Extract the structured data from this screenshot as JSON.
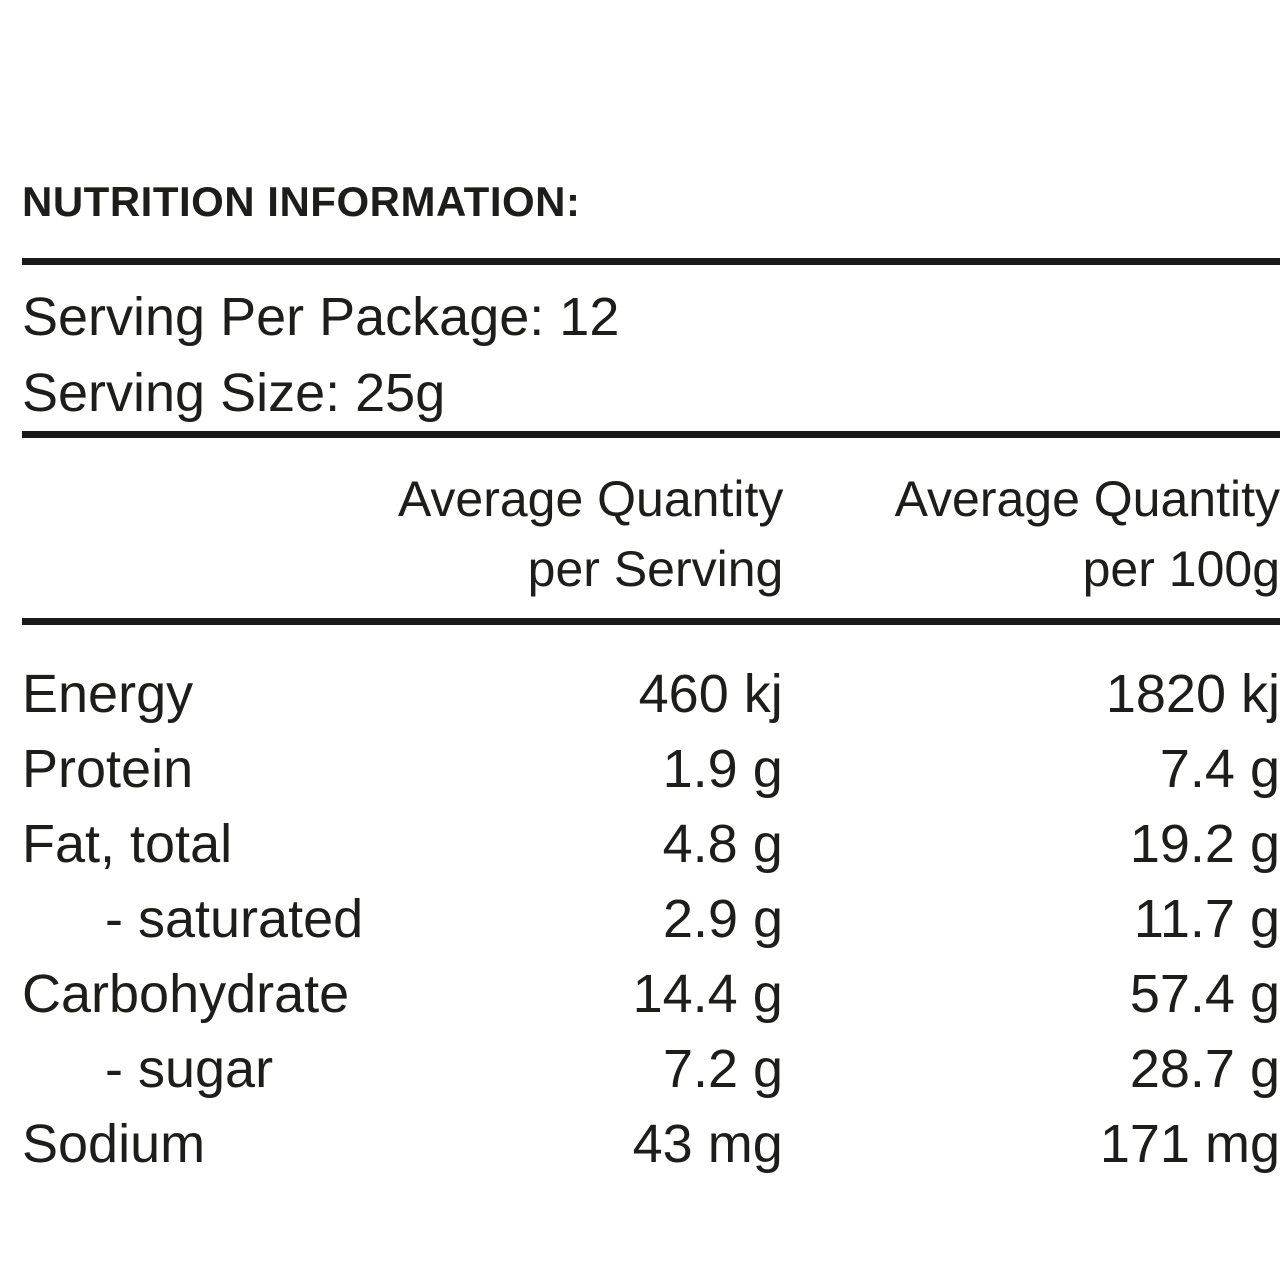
{
  "title": "NUTRITION INFORMATION:",
  "serving_info": {
    "per_package": "Serving Per Package: 12",
    "size": "Serving Size: 25g"
  },
  "table": {
    "columns": [
      {
        "line1": "Average Quantity",
        "line2": "per Serving"
      },
      {
        "line1": "Average Quantity",
        "line2": "per 100g"
      }
    ],
    "rows": [
      {
        "label": "Energy",
        "per_serving": "460 kj",
        "per_100g": "1820 kj"
      },
      {
        "label": "Protein",
        "per_serving": "1.9 g",
        "per_100g": "7.4 g"
      },
      {
        "label": "Fat, total",
        "per_serving": "4.8 g",
        "per_100g": "19.2 g"
      },
      {
        "label": "- saturated",
        "per_serving": "2.9 g",
        "per_100g": "11.7 g"
      },
      {
        "label": "Carbohydrate",
        "per_serving": "14.4 g",
        "per_100g": "57.4 g"
      },
      {
        "label": "- sugar",
        "per_serving": "7.2 g",
        "per_100g": "28.7 g"
      },
      {
        "label": "Sodium",
        "per_serving": "43 mg",
        "per_100g": "171 mg"
      }
    ]
  },
  "colors": {
    "text": "#1d1d1b",
    "background": "#ffffff",
    "rule": "#191919"
  }
}
